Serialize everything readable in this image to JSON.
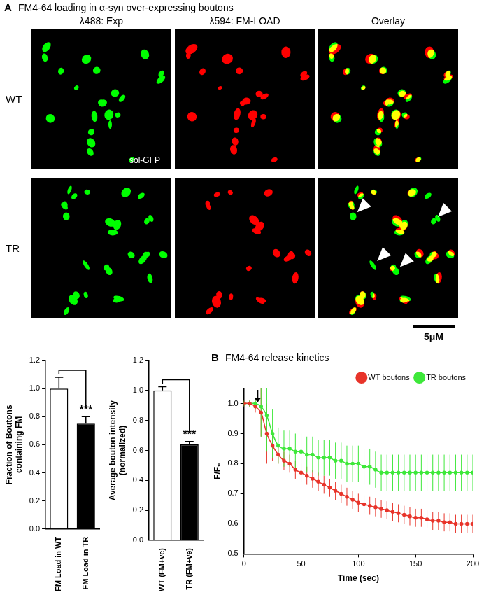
{
  "figure": {
    "panel_a": {
      "label": "A",
      "title": "FM4-64 loading in α-syn over-expressing boutons",
      "columns": [
        "λ488: Exp",
        "λ594: FM-LOAD",
        "Overlay"
      ],
      "rows": [
        "WT",
        "TR"
      ],
      "image_label": "sol-GFP",
      "scale_bar": "5μM"
    },
    "panel_b": {
      "label": "B",
      "title": "FM4-64 release kinetics"
    }
  },
  "chart_data": [
    {
      "type": "bar",
      "y_label": [
        "Fraction of Boutons",
        "containing FM"
      ],
      "categories": [
        "FM Load in WT",
        "FM Load in TR"
      ],
      "values": [
        1.0,
        0.75
      ],
      "errors": [
        0.08,
        0.05
      ],
      "colors": [
        "#ffffff",
        "#000000"
      ],
      "ylim": [
        0,
        1.2
      ],
      "yticks": [
        {
          "value": 0,
          "label": "0.0"
        },
        0.2,
        0.4,
        0.6,
        0.8,
        {
          "value": 1,
          "label": "1.0"
        },
        1.2
      ],
      "significance": "***",
      "grid": false
    },
    {
      "type": "bar",
      "y_label": [
        "Average bouton intensity",
        "(normalized)"
      ],
      "categories": [
        "WT (FM+ve)",
        "TR (FM+ve)"
      ],
      "values": [
        1.0,
        0.64
      ],
      "errors": [
        0.025,
        0.02
      ],
      "colors": [
        "#ffffff",
        "#000000"
      ],
      "ylim": [
        0,
        1.2
      ],
      "yticks": [
        {
          "value": 0,
          "label": "0.0"
        },
        0.2,
        0.4,
        0.6,
        0.8,
        {
          "value": 1,
          "label": "1.0"
        },
        1.2
      ],
      "significance": "***",
      "grid": false
    },
    {
      "type": "line",
      "x_label": "Time (sec)",
      "y_label": "F/F₀",
      "x": [
        0,
        5,
        10,
        15,
        20,
        25,
        30,
        35,
        40,
        45,
        50,
        55,
        60,
        65,
        70,
        75,
        80,
        85,
        90,
        95,
        100,
        105,
        110,
        115,
        120,
        125,
        130,
        135,
        140,
        145,
        150,
        155,
        160,
        165,
        170,
        175,
        180,
        185,
        190,
        195,
        200
      ],
      "series": [
        {
          "name": "WT boutons",
          "color": "#e8342a",
          "values": [
            1.0,
            1.0,
            0.99,
            0.97,
            0.9,
            0.86,
            0.83,
            0.81,
            0.8,
            0.78,
            0.77,
            0.76,
            0.75,
            0.74,
            0.73,
            0.72,
            0.71,
            0.7,
            0.69,
            0.68,
            0.67,
            0.665,
            0.66,
            0.655,
            0.65,
            0.645,
            0.64,
            0.635,
            0.63,
            0.625,
            0.62,
            0.62,
            0.615,
            0.61,
            0.61,
            0.605,
            0.605,
            0.6,
            0.6,
            0.6,
            0.6
          ],
          "errors": [
            0.01,
            0.01,
            0.02,
            0.08,
            0.1,
            0.05,
            0.03,
            0.03,
            0.03,
            0.03,
            0.03,
            0.03,
            0.03,
            0.03,
            0.03,
            0.03,
            0.03,
            0.03,
            0.03,
            0.03,
            0.03,
            0.03,
            0.03,
            0.03,
            0.03,
            0.03,
            0.03,
            0.03,
            0.03,
            0.03,
            0.03,
            0.03,
            0.03,
            0.03,
            0.03,
            0.03,
            0.03,
            0.03,
            0.03,
            0.03,
            0.03
          ]
        },
        {
          "name": "TR boutons",
          "color": "#3ee83a",
          "values": [
            1.0,
            1.0,
            1.0,
            0.99,
            0.96,
            0.9,
            0.86,
            0.85,
            0.85,
            0.84,
            0.84,
            0.83,
            0.83,
            0.82,
            0.82,
            0.82,
            0.81,
            0.81,
            0.8,
            0.8,
            0.8,
            0.79,
            0.79,
            0.78,
            0.77,
            0.77,
            0.77,
            0.77,
            0.77,
            0.77,
            0.77,
            0.77,
            0.77,
            0.77,
            0.77,
            0.77,
            0.77,
            0.77,
            0.77,
            0.77,
            0.77
          ],
          "errors": [
            0.01,
            0.01,
            0.02,
            0.1,
            0.12,
            0.08,
            0.06,
            0.06,
            0.06,
            0.06,
            0.06,
            0.06,
            0.06,
            0.06,
            0.06,
            0.06,
            0.06,
            0.06,
            0.06,
            0.06,
            0.06,
            0.06,
            0.06,
            0.06,
            0.06,
            0.06,
            0.06,
            0.06,
            0.06,
            0.06,
            0.06,
            0.06,
            0.06,
            0.06,
            0.06,
            0.06,
            0.06,
            0.06,
            0.06,
            0.06,
            0.06
          ]
        }
      ],
      "xlim": [
        0,
        200
      ],
      "xticks": [
        0,
        50,
        100,
        150,
        200
      ],
      "ylim": [
        0.5,
        1.05
      ],
      "yticks": [
        0.5,
        0.6,
        0.7,
        0.8,
        0.9,
        {
          "value": 1,
          "label": "1.0"
        }
      ],
      "legend": "upper right",
      "marker": "circle",
      "arrow_x": 12,
      "grid": false
    }
  ]
}
